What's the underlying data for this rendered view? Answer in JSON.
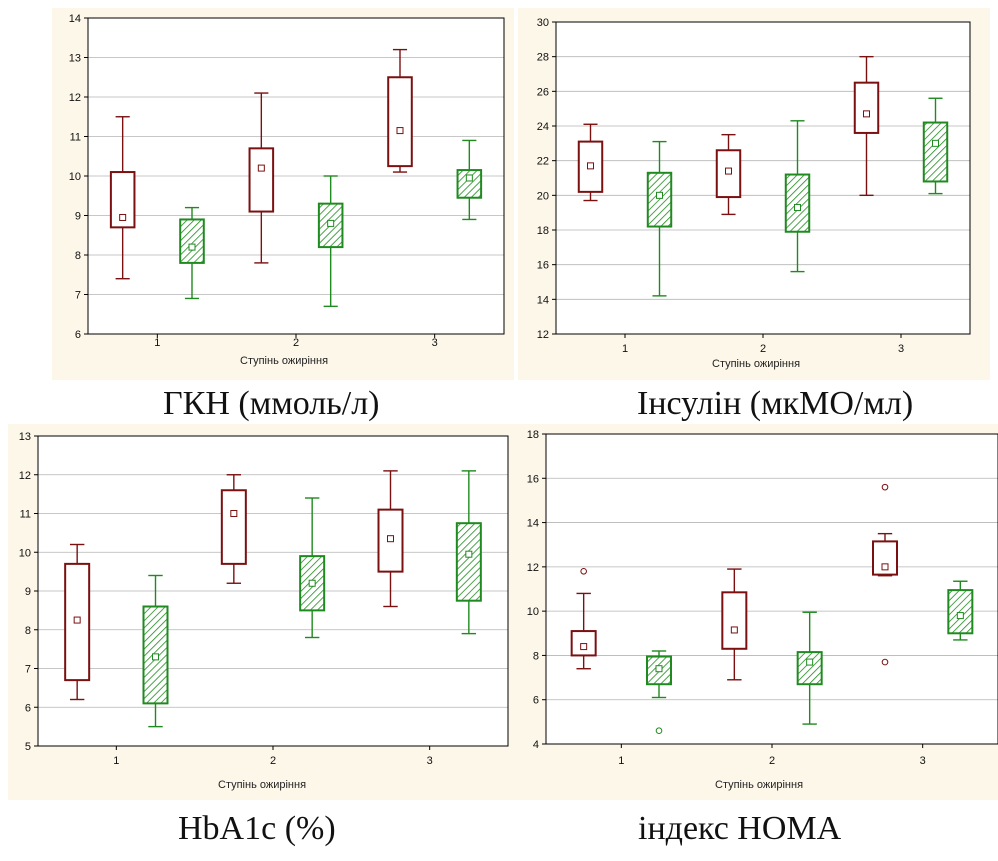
{
  "colors": {
    "group_a": "#7a1010",
    "group_b": "#1f8a1f",
    "group_b_fill": "#9fd49f",
    "grid": "#b5b5b5",
    "panel_bg": "#fdf7ea"
  },
  "chart_data": [
    {
      "type": "box",
      "caption": "ГКН (ммоль/л)",
      "xlabel": "Ступінь ожиріння",
      "categories": [
        "1",
        "2",
        "3"
      ],
      "ylim": [
        6,
        14
      ],
      "yticks": [
        6,
        7,
        8,
        9,
        10,
        11,
        12,
        13,
        14
      ],
      "boxes": [
        {
          "category": "1",
          "group": "a",
          "min": 7.4,
          "q1": 8.7,
          "median": 8.95,
          "q3": 10.1,
          "max": 11.5
        },
        {
          "category": "1",
          "group": "b",
          "min": 6.9,
          "q1": 7.8,
          "median": 8.2,
          "q3": 8.9,
          "max": 9.2
        },
        {
          "category": "2",
          "group": "a",
          "min": 7.8,
          "q1": 9.1,
          "median": 10.2,
          "q3": 10.7,
          "max": 12.1
        },
        {
          "category": "2",
          "group": "b",
          "min": 6.7,
          "q1": 8.2,
          "median": 8.8,
          "q3": 9.3,
          "max": 10.0
        },
        {
          "category": "3",
          "group": "a",
          "min": 10.1,
          "q1": 10.25,
          "median": 11.15,
          "q3": 12.5,
          "max": 13.2
        },
        {
          "category": "3",
          "group": "b",
          "min": 8.9,
          "q1": 9.45,
          "median": 9.95,
          "q3": 10.15,
          "max": 10.9
        }
      ]
    },
    {
      "type": "box",
      "caption": "Інсулін (мкМО/мл)",
      "xlabel": "Ступінь ожиріння",
      "categories": [
        "1",
        "2",
        "3"
      ],
      "ylim": [
        12,
        30
      ],
      "yticks": [
        12,
        14,
        16,
        18,
        20,
        22,
        24,
        26,
        28,
        30
      ],
      "boxes": [
        {
          "category": "1",
          "group": "a",
          "min": 19.7,
          "q1": 20.2,
          "median": 21.7,
          "q3": 23.1,
          "max": 24.1
        },
        {
          "category": "1",
          "group": "b",
          "min": 14.2,
          "q1": 18.2,
          "median": 20.0,
          "q3": 21.3,
          "max": 23.1
        },
        {
          "category": "2",
          "group": "a",
          "min": 18.9,
          "q1": 19.9,
          "median": 21.4,
          "q3": 22.6,
          "max": 23.5
        },
        {
          "category": "2",
          "group": "b",
          "min": 15.6,
          "q1": 17.9,
          "median": 19.3,
          "q3": 21.2,
          "max": 24.3
        },
        {
          "category": "3",
          "group": "a",
          "min": 20.0,
          "q1": 23.6,
          "median": 24.7,
          "q3": 26.5,
          "max": 28.0
        },
        {
          "category": "3",
          "group": "b",
          "min": 20.1,
          "q1": 20.8,
          "median": 23.0,
          "q3": 24.2,
          "max": 25.6
        }
      ]
    },
    {
      "type": "box",
      "caption": "HbA1c (%)",
      "xlabel": "Ступінь ожиріння",
      "categories": [
        "1",
        "2",
        "3"
      ],
      "ylim": [
        5,
        13
      ],
      "yticks": [
        5,
        6,
        7,
        8,
        9,
        10,
        11,
        12,
        13
      ],
      "boxes": [
        {
          "category": "1",
          "group": "a",
          "min": 6.2,
          "q1": 6.7,
          "median": 8.25,
          "q3": 9.7,
          "max": 10.2
        },
        {
          "category": "1",
          "group": "b",
          "min": 5.5,
          "q1": 6.1,
          "median": 7.3,
          "q3": 8.6,
          "max": 9.4
        },
        {
          "category": "2",
          "group": "a",
          "min": 9.2,
          "q1": 9.7,
          "median": 11.0,
          "q3": 11.6,
          "max": 12.0
        },
        {
          "category": "2",
          "group": "b",
          "min": 7.8,
          "q1": 8.5,
          "median": 9.2,
          "q3": 9.9,
          "max": 11.4
        },
        {
          "category": "3",
          "group": "a",
          "min": 8.6,
          "q1": 9.5,
          "median": 10.35,
          "q3": 11.1,
          "max": 12.1
        },
        {
          "category": "3",
          "group": "b",
          "min": 7.9,
          "q1": 8.75,
          "median": 9.95,
          "q3": 10.75,
          "max": 12.1
        }
      ]
    },
    {
      "type": "box",
      "caption": "індекс HOMA",
      "xlabel": "Ступінь ожиріння",
      "categories": [
        "1",
        "2",
        "3"
      ],
      "ylim": [
        4,
        18
      ],
      "yticks": [
        4,
        6,
        8,
        10,
        12,
        14,
        16,
        18
      ],
      "boxes": [
        {
          "category": "1",
          "group": "a",
          "min": 7.4,
          "q1": 8.0,
          "median": 8.4,
          "q3": 9.1,
          "max": 10.8,
          "outliers": [
            11.8
          ]
        },
        {
          "category": "1",
          "group": "b",
          "min": 6.1,
          "q1": 6.7,
          "median": 7.4,
          "q3": 7.95,
          "max": 8.2,
          "outliers": [
            4.6
          ]
        },
        {
          "category": "2",
          "group": "a",
          "min": 6.9,
          "q1": 8.3,
          "median": 9.15,
          "q3": 10.85,
          "max": 11.9
        },
        {
          "category": "2",
          "group": "b",
          "min": 4.9,
          "q1": 6.7,
          "median": 7.7,
          "q3": 8.15,
          "max": 9.95
        },
        {
          "category": "3",
          "group": "a",
          "min": 11.6,
          "q1": 11.65,
          "median": 12.0,
          "q3": 13.15,
          "max": 13.5,
          "outliers": [
            15.6,
            7.7
          ]
        },
        {
          "category": "3",
          "group": "b",
          "min": 8.7,
          "q1": 9.0,
          "median": 9.8,
          "q3": 10.95,
          "max": 11.35
        }
      ]
    }
  ]
}
